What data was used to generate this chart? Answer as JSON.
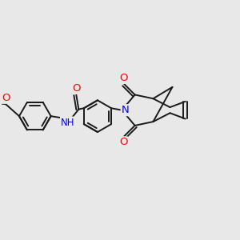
{
  "bg_color": "#e8e8e8",
  "bond_color": "#1a1a1a",
  "bond_width": 1.4,
  "atom_colors": {
    "O": "#ff0000",
    "N": "#0000ff"
  },
  "font_size": 8.5,
  "figsize": [
    3.0,
    3.0
  ],
  "dpi": 100
}
